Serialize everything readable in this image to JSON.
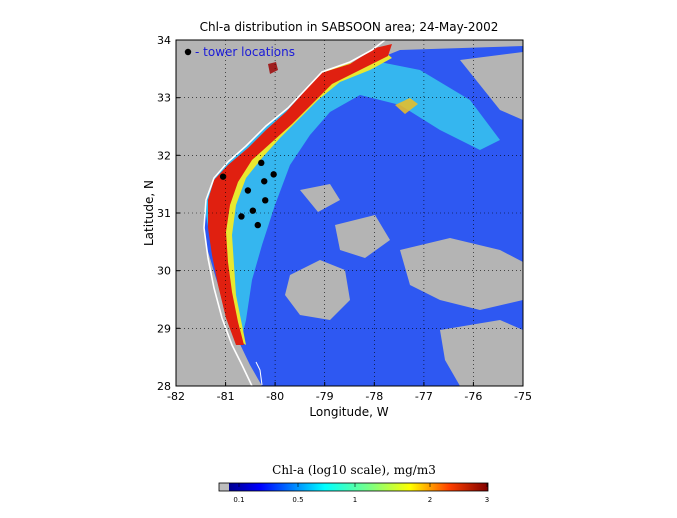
{
  "map": {
    "title": "Chl-a distribution in SABSOON area; 24-May-2002",
    "xlabel": "Longitude, W",
    "ylabel": "Latitude, N",
    "x_ticks": [
      "-82",
      "-81",
      "-80",
      "-79",
      "-78",
      "-77",
      "-76",
      "-75"
    ],
    "y_ticks": [
      "28",
      "29",
      "30",
      "31",
      "32",
      "33",
      "34"
    ],
    "legend_label": "- tower locations",
    "legend_color": "#1a1ad8",
    "land_color": "#b4b4b4",
    "grid": "dotted",
    "towers": [
      {
        "lon": -81.05,
        "lat": 31.63
      },
      {
        "lon": -80.28,
        "lat": 31.87
      },
      {
        "lon": -80.03,
        "lat": 31.67
      },
      {
        "lon": -80.22,
        "lat": 31.55
      },
      {
        "lon": -80.55,
        "lat": 31.39
      },
      {
        "lon": -80.2,
        "lat": 31.22
      },
      {
        "lon": -80.45,
        "lat": 31.04
      },
      {
        "lon": -80.68,
        "lat": 30.94
      },
      {
        "lon": -80.35,
        "lat": 30.79
      }
    ]
  },
  "colorbar": {
    "title": "Chl-a (log10 scale), mg/m3",
    "ticks": [
      "0.1",
      "0.5",
      "1",
      "2",
      "3"
    ],
    "colormap": [
      "#bdbdbd",
      "#00008f",
      "#0000ff",
      "#007fff",
      "#00ffff",
      "#7fff7f",
      "#ffff00",
      "#ff7f00",
      "#ff0000",
      "#800000"
    ]
  }
}
